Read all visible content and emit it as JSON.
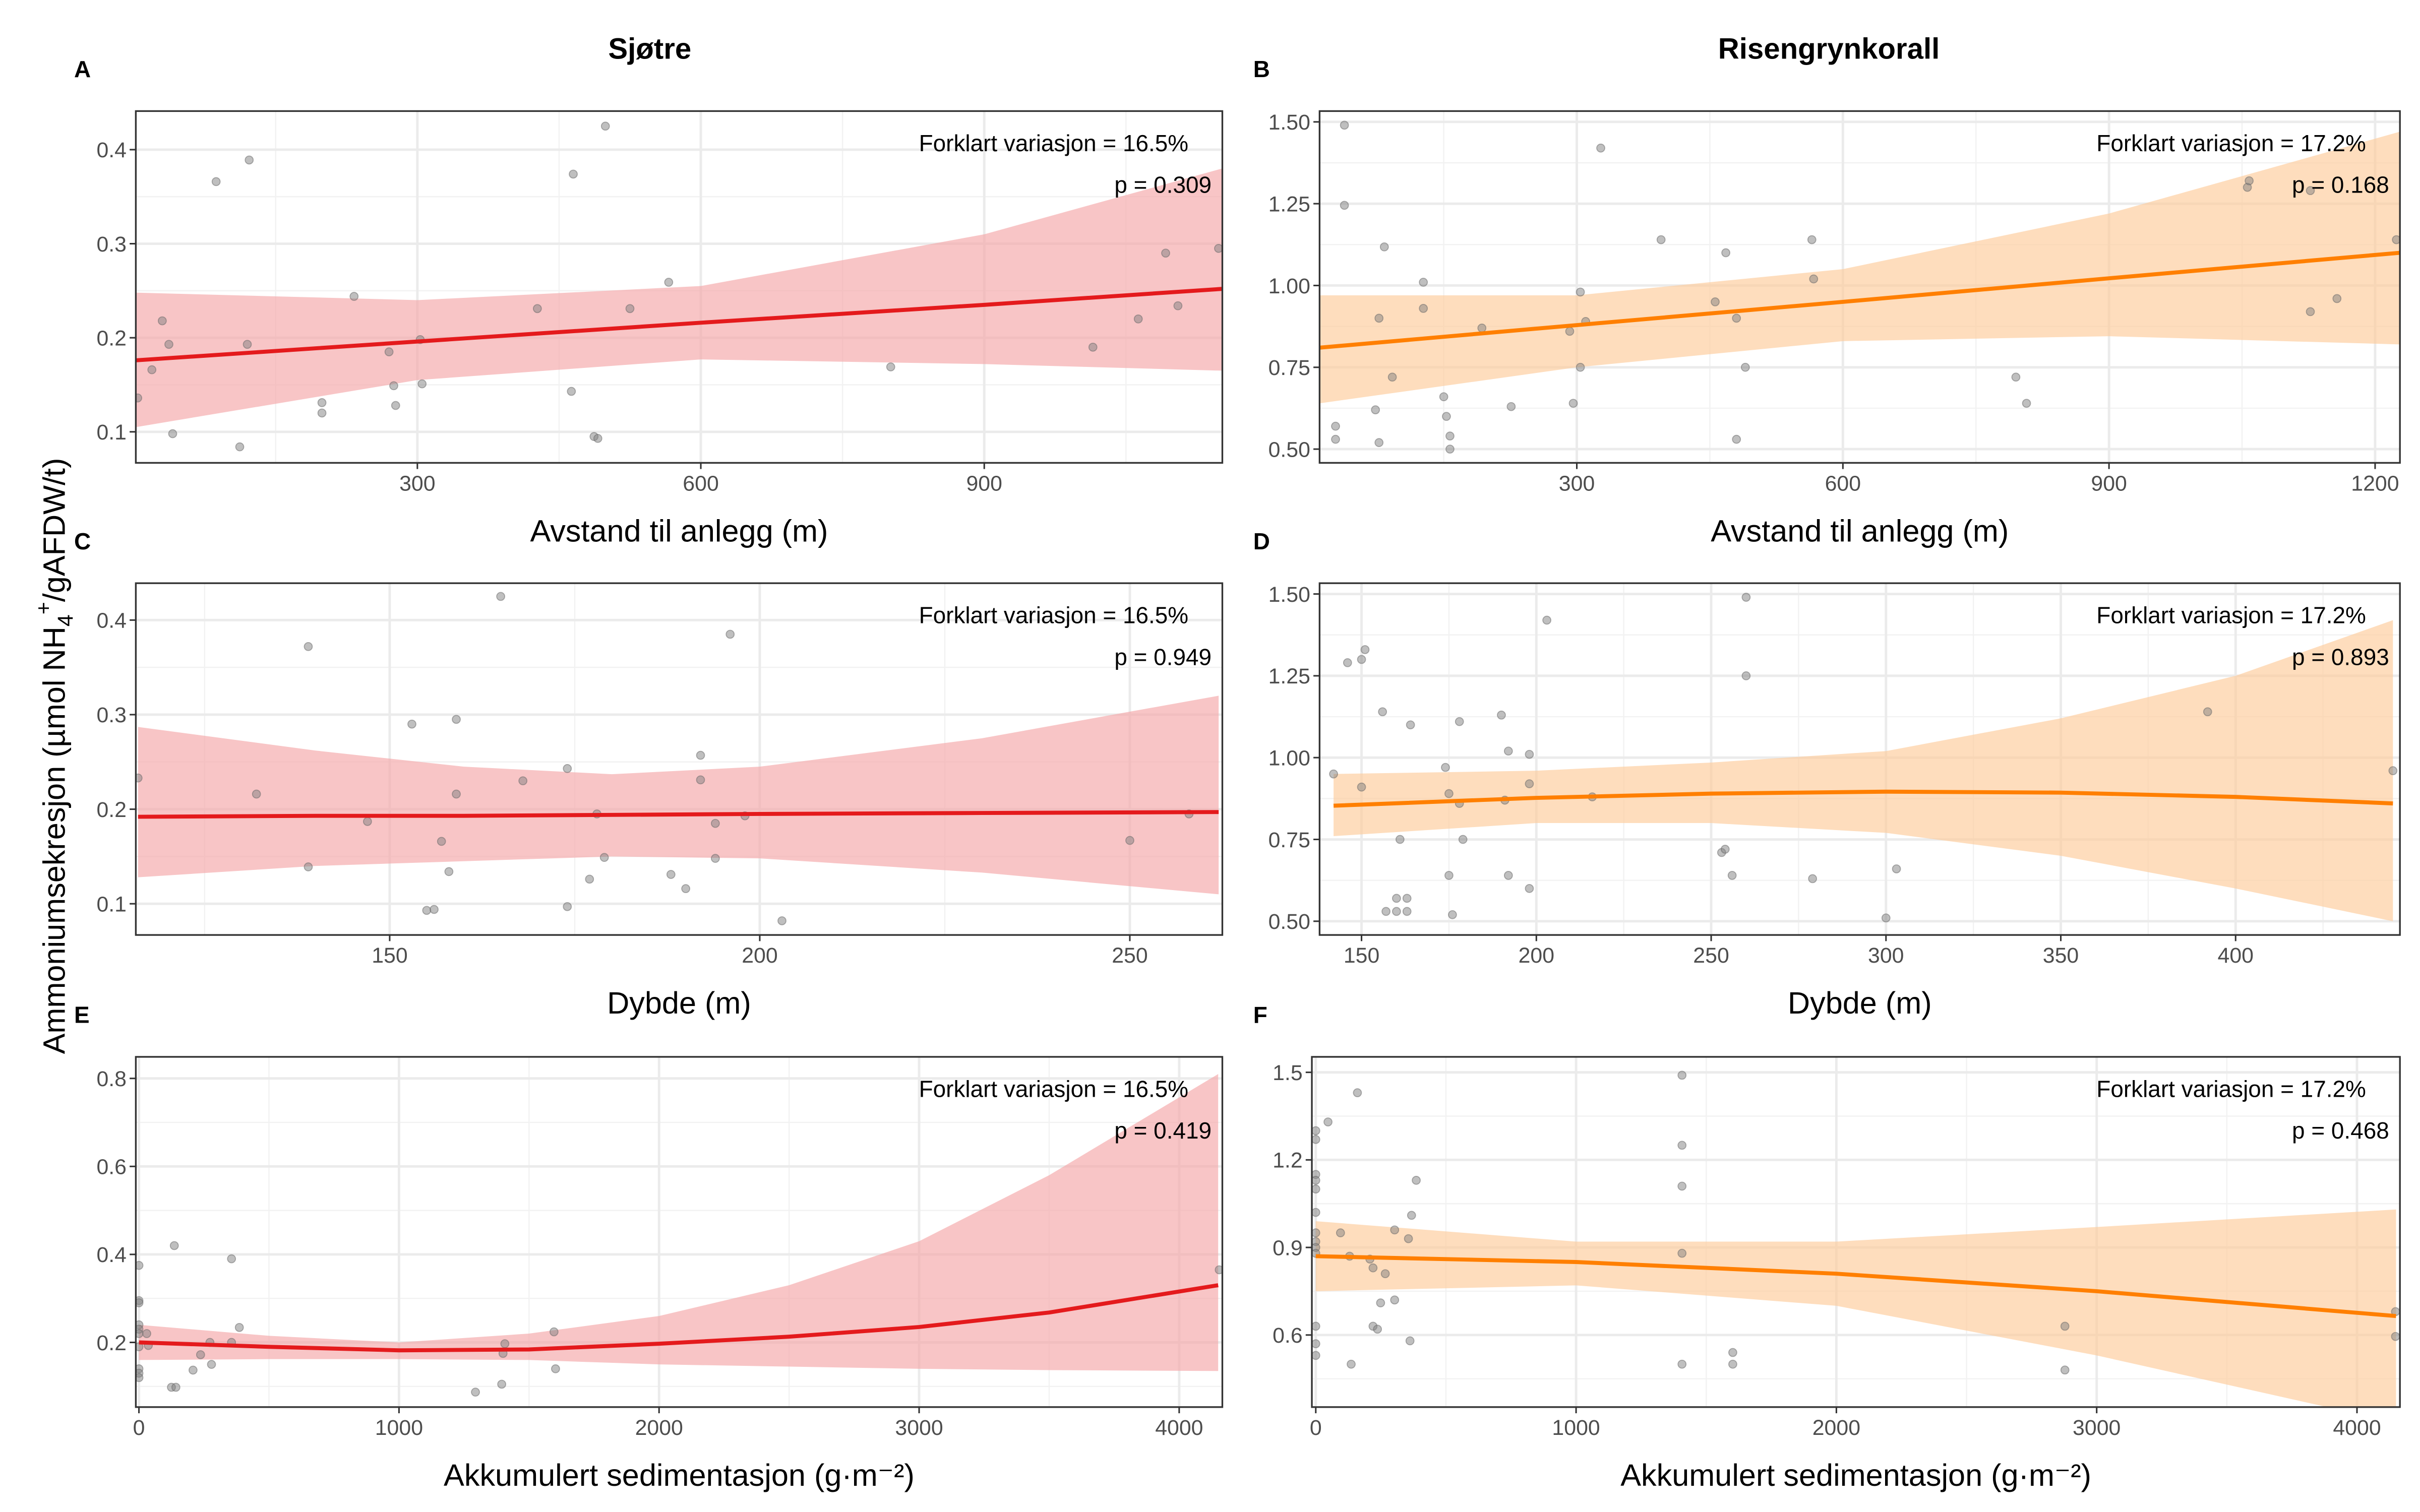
{
  "column_titles": [
    "Sjøtre",
    "Risengrynkorall"
  ],
  "y_axis_label": {
    "pre": "Ammoniumsekresjon (µmol NH",
    "sub": "4",
    "sup": "+",
    "post": "/gAFDW/t)"
  },
  "colors": {
    "sjotre_line": "#E41A1C",
    "sjotre_band": "#F4A6A8",
    "risengryn_line": "#FF7F00",
    "risengryn_band": "#FDCB9A",
    "points": "#808080"
  },
  "chart_data": [
    {
      "type": "scatter",
      "panel": "A",
      "xlabel": "Avstand til anlegg (m)",
      "annotation": "Forklart variasjon = 16.5%",
      "p_value": "p = 0.309",
      "xlim": [
        2,
        1152
      ],
      "ylim": [
        0.067,
        0.441
      ],
      "xticks": [
        300,
        600,
        900
      ],
      "xtick_labels": [
        "300",
        "600",
        "900"
      ],
      "yticks": [
        0.1,
        0.2,
        0.3,
        0.4
      ],
      "ytick_labels": [
        "0.1",
        "0.2",
        "0.3",
        "0.4"
      ],
      "series_color": "sjotre",
      "points": [
        [
          4,
          0.136
        ],
        [
          19,
          0.166
        ],
        [
          30,
          0.218
        ],
        [
          37,
          0.193
        ],
        [
          41,
          0.098
        ],
        [
          87,
          0.366
        ],
        [
          112,
          0.084
        ],
        [
          122,
          0.389
        ],
        [
          120,
          0.193
        ],
        [
          199,
          0.131
        ],
        [
          199,
          0.12
        ],
        [
          233,
          0.244
        ],
        [
          270,
          0.185
        ],
        [
          275,
          0.149
        ],
        [
          277,
          0.128
        ],
        [
          303,
          0.198
        ],
        [
          305,
          0.151
        ],
        [
          427,
          0.231
        ],
        [
          463,
          0.143
        ],
        [
          465,
          0.374
        ],
        [
          487,
          0.095
        ],
        [
          491,
          0.093
        ],
        [
          499,
          0.425
        ],
        [
          525,
          0.231
        ],
        [
          566,
          0.259
        ],
        [
          801,
          0.169
        ],
        [
          1015,
          0.19
        ],
        [
          1063,
          0.22
        ],
        [
          1092,
          0.29
        ],
        [
          1105,
          0.234
        ],
        [
          1148,
          0.295
        ]
      ],
      "fit": {
        "x": [
          2,
          300,
          600,
          900,
          1152
        ],
        "y": [
          0.176,
          0.196,
          0.216,
          0.235,
          0.252
        ],
        "lower": [
          0.105,
          0.155,
          0.177,
          0.172,
          0.165
        ],
        "upper": [
          0.248,
          0.24,
          0.255,
          0.31,
          0.38
        ]
      }
    },
    {
      "type": "scatter",
      "panel": "B",
      "xlabel": "Avstand til anlegg (m)",
      "annotation": "Forklart variasjon = 17.2%",
      "p_value": "p = 0.168",
      "xlim": [
        10,
        1228
      ],
      "ylim": [
        0.458,
        1.533
      ],
      "xticks": [
        300,
        600,
        900,
        1200
      ],
      "xtick_labels": [
        "300",
        "600",
        "900",
        "1200"
      ],
      "yticks": [
        0.5,
        0.75,
        1.0,
        1.25,
        1.5
      ],
      "ytick_labels": [
        "0.50",
        "0.75",
        "1.00",
        "1.25",
        "1.50"
      ],
      "series_color": "risengryn",
      "points": [
        [
          38,
          1.49
        ],
        [
          38,
          1.245
        ],
        [
          83,
          1.118
        ],
        [
          77,
          0.9
        ],
        [
          92,
          0.72
        ],
        [
          127,
          1.01
        ],
        [
          127,
          0.93
        ],
        [
          193,
          0.87
        ],
        [
          73,
          0.62
        ],
        [
          28,
          0.57
        ],
        [
          28,
          0.53
        ],
        [
          77,
          0.52
        ],
        [
          150,
          0.66
        ],
        [
          153,
          0.6
        ],
        [
          157,
          0.54
        ],
        [
          157,
          0.5
        ],
        [
          226,
          0.63
        ],
        [
          296,
          0.64
        ],
        [
          292,
          0.86
        ],
        [
          304,
          0.98
        ],
        [
          304,
          0.75
        ],
        [
          310,
          0.89
        ],
        [
          327,
          1.42
        ],
        [
          395,
          1.14
        ],
        [
          456,
          0.95
        ],
        [
          468,
          1.1
        ],
        [
          480,
          0.9
        ],
        [
          480,
          0.53
        ],
        [
          490,
          0.75
        ],
        [
          565,
          1.14
        ],
        [
          567,
          1.02
        ],
        [
          795,
          0.72
        ],
        [
          807,
          0.64
        ],
        [
          1056,
          1.3
        ],
        [
          1058,
          1.32
        ],
        [
          1127,
          1.29
        ],
        [
          1127,
          0.92
        ],
        [
          1157,
          0.96
        ],
        [
          1224,
          1.14
        ]
      ],
      "fit": {
        "x": [
          10,
          300,
          600,
          900,
          1228
        ],
        "y": [
          0.81,
          0.879,
          0.95,
          1.022,
          1.1
        ],
        "lower": [
          0.64,
          0.75,
          0.83,
          0.845,
          0.82
        ],
        "upper": [
          0.97,
          0.97,
          1.05,
          1.22,
          1.47
        ]
      }
    },
    {
      "type": "scatter",
      "panel": "C",
      "xlabel": "Dybde (m)",
      "annotation": "Forklart variasjon = 16.5%",
      "p_value": "p = 0.949",
      "xlim": [
        115.7,
        262.5
      ],
      "ylim": [
        0.067,
        0.439
      ],
      "xticks": [
        150,
        200,
        250
      ],
      "xtick_labels": [
        "150",
        "200",
        "250"
      ],
      "yticks": [
        0.1,
        0.2,
        0.3,
        0.4
      ],
      "ytick_labels": [
        "0.1",
        "0.2",
        "0.3",
        "0.4"
      ],
      "series_color": "sjotre",
      "points": [
        [
          116,
          0.233
        ],
        [
          132,
          0.216
        ],
        [
          139,
          0.372
        ],
        [
          139,
          0.139
        ],
        [
          147,
          0.187
        ],
        [
          153,
          0.29
        ],
        [
          155,
          0.093
        ],
        [
          156,
          0.094
        ],
        [
          157,
          0.166
        ],
        [
          158,
          0.134
        ],
        [
          159,
          0.216
        ],
        [
          159,
          0.295
        ],
        [
          165,
          0.425
        ],
        [
          168,
          0.23
        ],
        [
          174,
          0.243
        ],
        [
          174,
          0.097
        ],
        [
          177,
          0.126
        ],
        [
          178,
          0.195
        ],
        [
          179,
          0.149
        ],
        [
          188,
          0.131
        ],
        [
          190,
          0.116
        ],
        [
          192,
          0.257
        ],
        [
          192,
          0.231
        ],
        [
          194,
          0.185
        ],
        [
          194,
          0.148
        ],
        [
          196,
          0.385
        ],
        [
          198,
          0.193
        ],
        [
          203,
          0.082
        ],
        [
          250,
          0.167
        ],
        [
          258,
          0.195
        ]
      ],
      "fit": {
        "x": [
          116,
          140,
          160,
          180,
          200,
          230,
          262
        ],
        "y": [
          0.192,
          0.193,
          0.193,
          0.194,
          0.195,
          0.196,
          0.197
        ],
        "lower": [
          0.128,
          0.14,
          0.145,
          0.15,
          0.148,
          0.133,
          0.11
        ],
        "upper": [
          0.287,
          0.262,
          0.245,
          0.237,
          0.245,
          0.275,
          0.32
        ]
      }
    },
    {
      "type": "scatter",
      "panel": "D",
      "xlabel": "Dybde (m)",
      "annotation": "Forklart variasjon = 17.2%",
      "p_value": "p = 0.893",
      "xlim": [
        138,
        447
      ],
      "ylim": [
        0.458,
        1.533
      ],
      "xticks": [
        150,
        200,
        250,
        300,
        350,
        400
      ],
      "xtick_labels": [
        "150",
        "200",
        "250",
        "300",
        "350",
        "400"
      ],
      "yticks": [
        0.5,
        0.75,
        1.0,
        1.25,
        1.5
      ],
      "ytick_labels": [
        "0.50",
        "0.75",
        "1.00",
        "1.25",
        "1.50"
      ],
      "series_color": "risengryn",
      "points": [
        [
          142,
          0.95
        ],
        [
          146,
          1.29
        ],
        [
          150,
          1.3
        ],
        [
          151,
          1.33
        ],
        [
          150,
          0.91
        ],
        [
          156,
          1.14
        ],
        [
          157,
          0.53
        ],
        [
          160,
          0.57
        ],
        [
          160,
          0.53
        ],
        [
          161,
          0.75
        ],
        [
          163,
          0.53
        ],
        [
          164,
          1.1
        ],
        [
          163,
          0.57
        ],
        [
          174,
          0.97
        ],
        [
          175,
          0.89
        ],
        [
          175,
          0.64
        ],
        [
          176,
          0.52
        ],
        [
          178,
          1.11
        ],
        [
          178,
          0.86
        ],
        [
          179,
          0.75
        ],
        [
          190,
          1.13
        ],
        [
          192,
          1.02
        ],
        [
          192,
          0.64
        ],
        [
          191,
          0.87
        ],
        [
          198,
          1.01
        ],
        [
          198,
          0.6
        ],
        [
          198,
          0.92
        ],
        [
          203,
          1.42
        ],
        [
          216,
          0.88
        ],
        [
          253,
          0.71
        ],
        [
          254,
          0.72
        ],
        [
          256,
          0.64
        ],
        [
          260,
          1.49
        ],
        [
          260,
          1.25
        ],
        [
          279,
          0.63
        ],
        [
          300,
          0.51
        ],
        [
          303,
          0.66
        ],
        [
          392,
          1.14
        ],
        [
          445,
          0.96
        ]
      ],
      "fit": {
        "x": [
          142,
          200,
          250,
          300,
          350,
          400,
          445
        ],
        "y": [
          0.853,
          0.877,
          0.89,
          0.896,
          0.893,
          0.88,
          0.86
        ],
        "lower": [
          0.76,
          0.8,
          0.8,
          0.77,
          0.7,
          0.6,
          0.5
        ],
        "upper": [
          0.95,
          0.96,
          0.985,
          1.02,
          1.12,
          1.25,
          1.42
        ]
      }
    },
    {
      "type": "scatter",
      "panel": "E",
      "xlabel": "Akkumulert sedimentasjon (g·m⁻²)",
      "annotation": "Forklart variasjon = 16.5%",
      "p_value": "p = 0.419",
      "xlim": [
        -12,
        4166
      ],
      "ylim": [
        0.053,
        0.849
      ],
      "xticks": [
        0,
        1000,
        2000,
        3000,
        4000
      ],
      "xtick_labels": [
        "0",
        "1000",
        "2000",
        "3000",
        "4000"
      ],
      "yticks": [
        0.2,
        0.4,
        0.6,
        0.8
      ],
      "ytick_labels": [
        "0.2",
        "0.4",
        "0.6",
        "0.8"
      ],
      "series_color": "sjotre",
      "points": [
        [
          0,
          0.375
        ],
        [
          0,
          0.295
        ],
        [
          0,
          0.29
        ],
        [
          0,
          0.24
        ],
        [
          0,
          0.23
        ],
        [
          0,
          0.22
        ],
        [
          0,
          0.19
        ],
        [
          0,
          0.14
        ],
        [
          0,
          0.13
        ],
        [
          0,
          0.12
        ],
        [
          30,
          0.22
        ],
        [
          36,
          0.193
        ],
        [
          125,
          0.098
        ],
        [
          142,
          0.098
        ],
        [
          136,
          0.42
        ],
        [
          208,
          0.137
        ],
        [
          237,
          0.172
        ],
        [
          273,
          0.2
        ],
        [
          279,
          0.15
        ],
        [
          356,
          0.2
        ],
        [
          356,
          0.39
        ],
        [
          386,
          0.234
        ],
        [
          1294,
          0.087
        ],
        [
          1395,
          0.105
        ],
        [
          1400,
          0.175
        ],
        [
          1407,
          0.197
        ],
        [
          1596,
          0.224
        ],
        [
          1602,
          0.14
        ],
        [
          4154,
          0.365
        ]
      ],
      "fit": {
        "x": [
          0,
          500,
          1000,
          1500,
          2000,
          2500,
          3000,
          3500,
          4150
        ],
        "y": [
          0.2,
          0.19,
          0.182,
          0.184,
          0.197,
          0.213,
          0.235,
          0.268,
          0.33
        ],
        "lower": [
          0.16,
          0.162,
          0.162,
          0.16,
          0.15,
          0.145,
          0.14,
          0.137,
          0.135
        ],
        "upper": [
          0.24,
          0.215,
          0.2,
          0.22,
          0.26,
          0.33,
          0.43,
          0.58,
          0.81
        ]
      }
    },
    {
      "type": "scatter",
      "panel": "F",
      "xlabel": "Akkumulert sedimentasjon (g·m⁻²)",
      "annotation": "Forklart variasjon = 17.2%",
      "p_value": "p = 0.468",
      "xlim": [
        -15,
        4165
      ],
      "ylim": [
        0.353,
        1.553
      ],
      "xticks": [
        0,
        1000,
        2000,
        3000,
        4000
      ],
      "xtick_labels": [
        "0",
        "1000",
        "2000",
        "3000",
        "4000"
      ],
      "yticks": [
        0.6,
        0.9,
        1.2,
        1.5
      ],
      "ytick_labels": [
        "0.6",
        "0.9",
        "1.2",
        "1.5"
      ],
      "series_color": "risengryn",
      "points": [
        [
          0,
          1.3
        ],
        [
          0,
          1.27
        ],
        [
          0,
          1.15
        ],
        [
          0,
          1.13
        ],
        [
          0,
          1.1
        ],
        [
          0,
          1.02
        ],
        [
          0,
          0.95
        ],
        [
          0,
          0.92
        ],
        [
          0,
          0.9
        ],
        [
          0,
          0.88
        ],
        [
          0,
          0.63
        ],
        [
          0,
          0.57
        ],
        [
          0,
          0.53
        ],
        [
          47,
          1.33
        ],
        [
          95,
          0.95
        ],
        [
          130,
          0.87
        ],
        [
          136,
          0.5
        ],
        [
          160,
          1.43
        ],
        [
          208,
          0.86
        ],
        [
          220,
          0.83
        ],
        [
          220,
          0.63
        ],
        [
          237,
          0.62
        ],
        [
          249,
          0.71
        ],
        [
          267,
          0.81
        ],
        [
          303,
          0.96
        ],
        [
          303,
          0.72
        ],
        [
          356,
          0.93
        ],
        [
          362,
          0.58
        ],
        [
          368,
          1.01
        ],
        [
          386,
          1.13
        ],
        [
          1407,
          1.49
        ],
        [
          1407,
          1.25
        ],
        [
          1407,
          1.11
        ],
        [
          1407,
          0.88
        ],
        [
          1407,
          0.5
        ],
        [
          1602,
          0.54
        ],
        [
          1602,
          0.5
        ],
        [
          2878,
          0.63
        ],
        [
          2878,
          0.48
        ],
        [
          4148,
          0.68
        ],
        [
          4148,
          0.595
        ]
      ],
      "fit": {
        "x": [
          0,
          1000,
          2000,
          3000,
          4150
        ],
        "y": [
          0.87,
          0.85,
          0.81,
          0.75,
          0.665
        ],
        "lower": [
          0.75,
          0.77,
          0.7,
          0.53,
          0.3
        ],
        "upper": [
          0.99,
          0.92,
          0.92,
          0.97,
          1.03
        ]
      }
    }
  ]
}
